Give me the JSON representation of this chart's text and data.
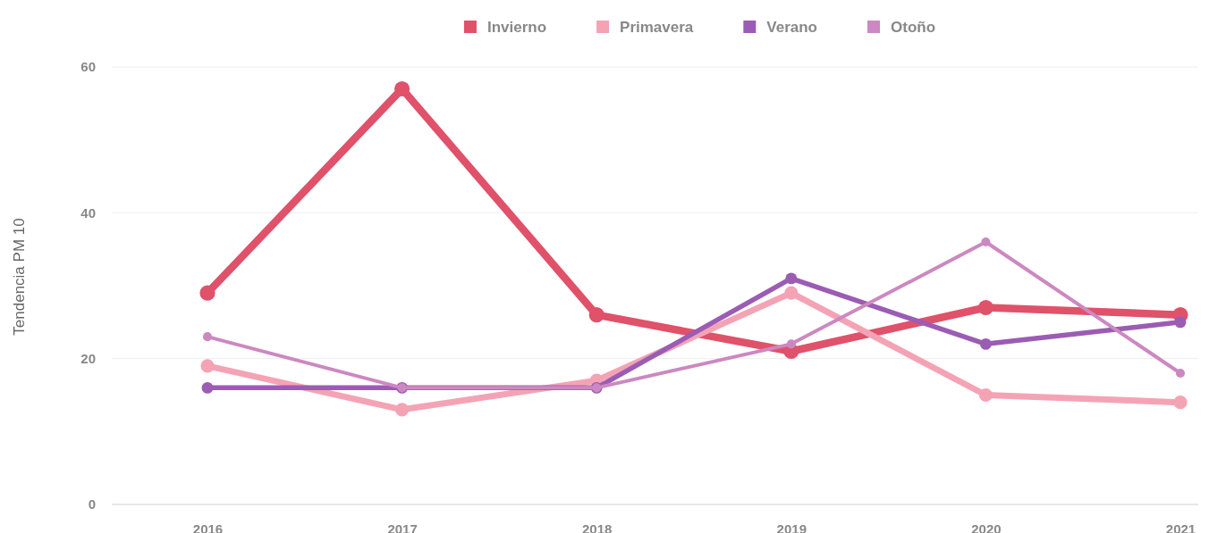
{
  "chart_data": {
    "type": "line",
    "ylabel": "Tendencia PM 10",
    "categories": [
      "2016",
      "2017",
      "2018",
      "2019",
      "2020",
      "2021"
    ],
    "series": [
      {
        "name": "Invierno",
        "color": "#e0516a",
        "values": [
          29,
          57,
          26,
          21,
          27,
          26
        ]
      },
      {
        "name": "Primavera",
        "color": "#f4a3b5",
        "values": [
          19,
          13,
          17,
          29,
          15,
          14
        ]
      },
      {
        "name": "Verano",
        "color": "#9b5cb4",
        "values": [
          16,
          16,
          16,
          31,
          22,
          25
        ]
      },
      {
        "name": "Otoño",
        "color": "#cc88c0",
        "values": [
          23,
          16,
          16,
          22,
          36,
          18
        ]
      }
    ],
    "ylim": [
      0,
      60
    ],
    "yticks": [
      0,
      20,
      40,
      60
    ],
    "grid": "y",
    "legend": "top",
    "marker": "circle",
    "line_style": "solid"
  }
}
